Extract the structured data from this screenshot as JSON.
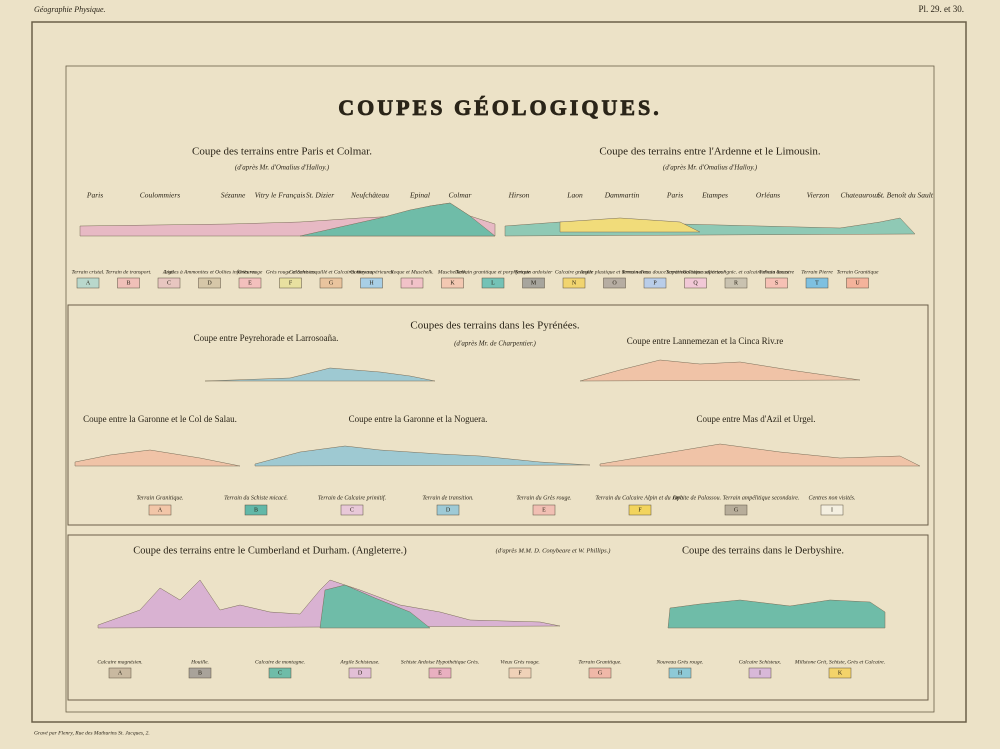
{
  "header": {
    "left": "Géographie Physique.",
    "right": "Pl. 29. et 30.",
    "title": "COUPES GÉOLOGIQUES."
  },
  "sections": [
    {
      "title": "Coupe des terrains entre Paris et Colmar.",
      "source": "(d'après Mr. d'Omalius d'Halloy.)",
      "places": [
        "Paris",
        "Coulommiers",
        "Sézanne",
        "Vitry le Français",
        "St. Dizier",
        "Neufchâteau",
        "Epinal",
        "Colmar"
      ]
    },
    {
      "title": "Coupe des terrains entre l'Ardenne et le Limousin.",
      "source": "(d'après Mr. d'Omalius d'Halloy.)",
      "places": [
        "Hirson",
        "Laon",
        "Dammartin",
        "Paris",
        "Etampes",
        "Orléans",
        "Vierzon",
        "Chateauroux",
        "St. Benoît du Sault"
      ]
    },
    {
      "title": "Coupes des terrains dans les Pyrénées.",
      "source": "(d'après Mr. de Charpentier.)",
      "profiles": [
        "Coupe entre Peyrehorade et Larrosoaña.",
        "Coupe entre Lannemezan et la Cinca Riv.re",
        "Coupe entre la Garonne et le Col de Salau.",
        "Coupe entre la Garonne et la Noguera.",
        "Coupe entre Mas d'Azil et Urgel."
      ]
    },
    {
      "title": "Coupe des terrains entre le Cumberland et Durham. (Angleterre.)",
      "source": "(d'après M.M. D. Conybeare et W. Phillips.)"
    },
    {
      "title": "Coupe des terrains dans le Derbyshire."
    }
  ],
  "legends": [
    [
      {
        "label": "Terrain cristal.",
        "letter": "A"
      },
      {
        "label": "Terrain de transport.",
        "letter": "B"
      },
      {
        "label": "Lias",
        "letter": "C"
      },
      {
        "label": "Argiles à Ammonites et Oolites inférieures",
        "letter": "D"
      },
      {
        "label": "Grès rouge",
        "letter": "E"
      },
      {
        "label": "Grès rouge et Schistes",
        "letter": "F"
      },
      {
        "label": "Calcaire coquillé et Calcaires moyens",
        "letter": "G"
      },
      {
        "label": "Oolites supérieures",
        "letter": "H"
      },
      {
        "label": "Roque et Muschelk.",
        "letter": "I"
      },
      {
        "label": "Muschelkalk.",
        "letter": "K"
      },
      {
        "label": "Terrain granitique et porphyrique",
        "letter": "L"
      },
      {
        "label": "Terrain ardoisier",
        "letter": "M"
      },
      {
        "label": "Calcaire grossier",
        "letter": "N"
      },
      {
        "label": "Argile plastique et terres noires",
        "letter": "O"
      },
      {
        "label": "Terrain d'eau douce supérieur",
        "letter": "P"
      },
      {
        "label": "Terrain oolitique supérieur",
        "letter": "Q"
      },
      {
        "label": "Calcaires siliceux lignic. et calcaire d'eau douce",
        "letter": "R"
      },
      {
        "label": "Terrain lacustre",
        "letter": "S"
      },
      {
        "label": "Terrain Pierre",
        "letter": "T"
      },
      {
        "label": "Terrain Granitique",
        "letter": "U"
      }
    ],
    [
      {
        "label": "Terrain Granitique.",
        "letter": "A"
      },
      {
        "label": "Terrain du Schiste micacé.",
        "letter": "B"
      },
      {
        "label": "Terrain de Calcaire primitif.",
        "letter": "C"
      },
      {
        "label": "Terrain de transition.",
        "letter": "D"
      },
      {
        "label": "Terrain du Grès rouge.",
        "letter": "E"
      },
      {
        "label": "Terrain du Calcaire Alpin et du Jura.",
        "letter": "F"
      },
      {
        "label": "Ophite de Palassou. Terrain ampélitique secondaire.",
        "letter": "G"
      },
      {
        "label": "Centres non visités.",
        "letter": "I"
      }
    ],
    [
      {
        "label": "Calcaire magnésien.",
        "letter": "A"
      },
      {
        "label": "Houille.",
        "letter": "B"
      },
      {
        "label": "Calcaire de montagne.",
        "letter": "C"
      },
      {
        "label": "Argile Schisteuse.",
        "letter": "D"
      },
      {
        "label": "Schiste Ardoise Hypothétique Grès.",
        "letter": "E"
      },
      {
        "label": "Vieux Grès rouge.",
        "letter": "F"
      },
      {
        "label": "Terrain Granitique.",
        "letter": "G"
      },
      {
        "label": "Nouveau Grès rouge.",
        "letter": "H"
      },
      {
        "label": "Calcaire Schisteux.",
        "letter": "I"
      },
      {
        "label": "Millstone Grit, Schiste, Grès et Calcaire.",
        "letter": "K"
      }
    ]
  ],
  "footer": "Gravé par Flenry, Rue des Mathurins St. Jacques, 2."
}
